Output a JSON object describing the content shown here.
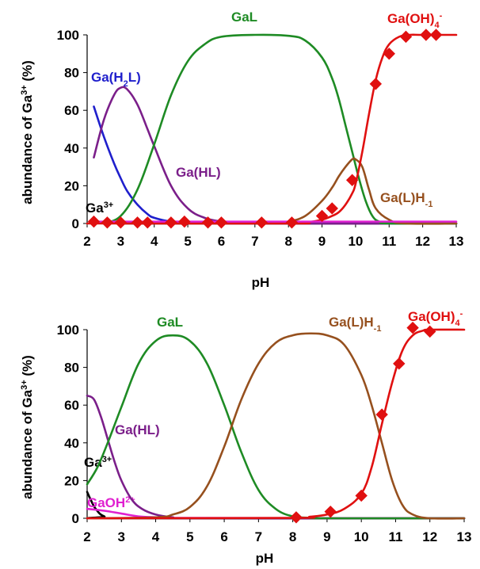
{
  "chart_data": [
    {
      "type": "line",
      "title": "",
      "xlabel": "pH",
      "ylabel_parts": [
        "abundance of Ga",
        "3+",
        " (%)"
      ],
      "xlim": [
        2,
        13
      ],
      "ylim": [
        0,
        100
      ],
      "xticks": [
        "2",
        "3",
        "4",
        "5",
        "6",
        "7",
        "8",
        "9",
        "10",
        "11",
        "12",
        "13"
      ],
      "yticks": [
        "0",
        "20",
        "40",
        "60",
        "80",
        "100"
      ],
      "series": [
        {
          "name_parts": [
            {
              "t": "Ga"
            },
            {
              "t": "3+",
              "sup": true
            }
          ],
          "color": "#000000",
          "x": [
            2.2,
            2.6,
            3.0,
            3.5,
            4.0,
            13.0
          ],
          "y": [
            1,
            0.6,
            0.3,
            0.1,
            0,
            0
          ]
        },
        {
          "name_parts": [
            {
              "t": "Ga(H"
            },
            {
              "t": "2",
              "sub": true
            },
            {
              "t": "L)"
            }
          ],
          "color": "#1f1fcc",
          "x": [
            2.2,
            2.5,
            2.8,
            3.0,
            3.2,
            3.5,
            3.8,
            4.0,
            4.5,
            5.0,
            13.0
          ],
          "y": [
            62,
            46,
            32,
            24,
            17,
            10,
            5,
            3,
            1,
            0.3,
            0
          ]
        },
        {
          "name_parts": [
            {
              "t": "Ga(HL)"
            }
          ],
          "color": "#7b1f8a",
          "x": [
            2.2,
            2.5,
            2.8,
            3.0,
            3.2,
            3.5,
            3.8,
            4.0,
            4.5,
            5.0,
            5.5,
            6.0,
            6.5,
            13.0
          ],
          "y": [
            35,
            55,
            68,
            72,
            71,
            63,
            50,
            41,
            20,
            8,
            3,
            1,
            0,
            0
          ]
        },
        {
          "name_parts": [
            {
              "t": "GaL"
            }
          ],
          "color": "#1e8b24",
          "x": [
            2.5,
            3.0,
            3.5,
            4.0,
            4.5,
            5.0,
            5.5,
            6.0,
            7.0,
            8.0,
            8.5,
            9.0,
            9.3,
            9.5,
            9.7,
            9.9,
            10.1,
            10.3,
            10.5,
            10.7,
            11.0,
            13.0
          ],
          "y": [
            0,
            4,
            18,
            42,
            68,
            86,
            95,
            99,
            100,
            99.5,
            97,
            88,
            77,
            66,
            52,
            38,
            24,
            12,
            4,
            1,
            0,
            0
          ]
        },
        {
          "name_parts": [
            {
              "t": "Ga(L)H"
            },
            {
              "t": "-1",
              "sub": true
            }
          ],
          "color": "#96501e",
          "x": [
            7.5,
            8.0,
            8.5,
            9.0,
            9.3,
            9.5,
            9.7,
            9.9,
            10.0,
            10.2,
            10.4,
            10.6,
            11.0,
            11.5,
            13.0
          ],
          "y": [
            0,
            1,
            4,
            12,
            19,
            25,
            30,
            34,
            34,
            30,
            18,
            8,
            2,
            0,
            0
          ]
        },
        {
          "name_parts": [
            {
              "t": "Ga(OH)"
            },
            {
              "t": "4",
              "sub": true
            },
            {
              "t": "-",
              "sup": true
            }
          ],
          "color": "#e01010",
          "x": [
            2,
            8.0,
            8.5,
            9.0,
            9.3,
            9.5,
            9.7,
            9.9,
            10.0,
            10.2,
            10.4,
            10.6,
            10.8,
            11.0,
            11.3,
            11.6,
            12.0,
            13.0
          ],
          "y": [
            0,
            0,
            0.5,
            2,
            4,
            6,
            10,
            16,
            21,
            38,
            58,
            76,
            88,
            95,
            99,
            100,
            100,
            100
          ]
        },
        {
          "name_parts": [],
          "color": "#e020d0",
          "x": [
            2.2,
            13.0
          ],
          "y": [
            1,
            1
          ]
        }
      ],
      "markers": {
        "series": "Ga(OH)4-",
        "shape": "diamond",
        "color": "#e01010",
        "x": [
          2.2,
          2.6,
          3.0,
          3.5,
          3.8,
          4.5,
          4.9,
          5.6,
          6.0,
          7.2,
          8.1,
          9.0,
          9.3,
          9.9,
          10.6,
          11.0,
          11.5,
          12.1,
          12.4
        ],
        "y": [
          1,
          0.5,
          0.5,
          0.5,
          0.5,
          0.5,
          1,
          0.5,
          0.5,
          0.5,
          0.5,
          4,
          8,
          23,
          74,
          90,
          99,
          100,
          100
        ]
      },
      "grid": false
    },
    {
      "type": "line",
      "title": "",
      "xlabel": "pH",
      "ylabel_parts": [
        "abundance of Ga",
        "3+",
        " (%)"
      ],
      "xlim": [
        2,
        13
      ],
      "ylim": [
        0,
        100
      ],
      "xticks": [
        "2",
        "3",
        "4",
        "5",
        "6",
        "7",
        "8",
        "9",
        "10",
        "11",
        "12",
        "13"
      ],
      "yticks": [
        "0",
        "20",
        "40",
        "60",
        "80",
        "100"
      ],
      "series": [
        {
          "name_parts": [
            {
              "t": "Ga"
            },
            {
              "t": "3+",
              "sup": true
            }
          ],
          "color": "#000000",
          "x": [
            2.0,
            2.1,
            2.25,
            2.5,
            3.0,
            13.0
          ],
          "y": [
            14,
            10,
            5,
            1,
            0,
            0
          ]
        },
        {
          "name_parts": [
            {
              "t": "GaOH"
            },
            {
              "t": "2+",
              "sup": true
            }
          ],
          "color": "#e020d0",
          "x": [
            2.0,
            2.5,
            3.0,
            3.5,
            4.0,
            4.5,
            13.0
          ],
          "y": [
            5,
            4,
            2.5,
            1,
            0.5,
            0.2,
            0
          ]
        },
        {
          "name_parts": [
            {
              "t": "Ga(HL)"
            }
          ],
          "color": "#7b1f8a",
          "x": [
            2.0,
            2.2,
            2.4,
            2.6,
            2.8,
            3.0,
            3.3,
            3.6,
            4.0,
            4.5,
            5.0,
            13.0
          ],
          "y": [
            65,
            63,
            54,
            42,
            30,
            20,
            10,
            5,
            2,
            0.5,
            0,
            0
          ]
        },
        {
          "name_parts": [
            {
              "t": "GaL"
            }
          ],
          "color": "#1e8b24",
          "x": [
            2.0,
            2.3,
            2.6,
            3.0,
            3.5,
            4.0,
            4.5,
            5.0,
            5.5,
            6.0,
            6.5,
            7.0,
            7.5,
            8.0,
            8.5,
            9.0,
            13.0
          ],
          "y": [
            18,
            27,
            40,
            59,
            82,
            94,
            97,
            94,
            82,
            60,
            35,
            15,
            5,
            1,
            0.3,
            0,
            0
          ]
        },
        {
          "name_parts": [
            {
              "t": "Ga(L)H"
            },
            {
              "t": "-1",
              "sub": true
            }
          ],
          "color": "#96501e",
          "x": [
            2.0,
            4.0,
            4.5,
            5.0,
            5.5,
            6.0,
            6.5,
            7.0,
            7.5,
            8.0,
            8.5,
            9.0,
            9.5,
            10.0,
            10.3,
            10.6,
            10.9,
            11.2,
            11.5,
            12.0,
            13.0
          ],
          "y": [
            0,
            0.5,
            2,
            6,
            17,
            38,
            63,
            82,
            93,
            97,
            98,
            97,
            92,
            76,
            60,
            40,
            20,
            7,
            2,
            0,
            0
          ]
        },
        {
          "name_parts": [
            {
              "t": "Ga(OH)"
            },
            {
              "t": "4",
              "sub": true
            },
            {
              "t": "-",
              "sup": true
            }
          ],
          "color": "#e01010",
          "x": [
            2.0,
            8.0,
            8.5,
            9.0,
            9.5,
            10.0,
            10.3,
            10.6,
            10.9,
            11.2,
            11.5,
            11.8,
            12.0,
            13.0
          ],
          "y": [
            0,
            0.2,
            0.8,
            2,
            5,
            13,
            27,
            50,
            72,
            89,
            97,
            99.5,
            100,
            100
          ]
        }
      ],
      "markers": {
        "series": "Ga(OH)4-",
        "shape": "diamond",
        "color": "#e01010",
        "x": [
          8.1,
          9.1,
          10.0,
          10.6,
          11.1,
          11.5,
          12.0
        ],
        "y": [
          0.5,
          3.5,
          12,
          55,
          82,
          101,
          99
        ]
      },
      "grid": false
    }
  ]
}
